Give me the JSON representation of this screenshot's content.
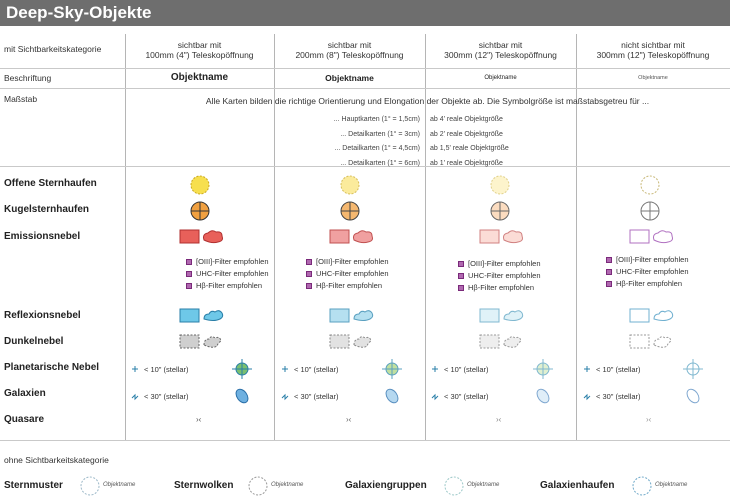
{
  "title": "Deep-Sky-Objekte",
  "header": {
    "row_label": "mit Sichtbarkeitskategorie",
    "columns": [
      {
        "line1": "sichtbar mit",
        "line2": "100mm (4\") Teleskopöffnung"
      },
      {
        "line1": "sichtbar mit",
        "line2": "200mm (8\") Teleskopöffnung"
      },
      {
        "line1": "sichtbar mit",
        "line2": "300mm (12\") Teleskopöffnung"
      },
      {
        "line1": "nicht sichtbar mit",
        "line2": "300mm (12\") Teleskopöffnung"
      }
    ]
  },
  "beschriftung": {
    "label": "Beschriftung",
    "samples": [
      "Objektname",
      "Objektname",
      "Objektname",
      "Objektname"
    ]
  },
  "massstab": {
    "label": "Maßstab",
    "intro": "Alle Karten bilden die richtige Orientierung und Elongation der Objekte ab. Die Symbolgröße ist maßstabsgetreu für ...",
    "rows": [
      {
        "left": "... Hauptkarten (1° = 1,5cm)",
        "right": "ab 4' reale Objektgröße"
      },
      {
        "left": "... Detailkarten (1° = 3cm)",
        "right": "ab 2' reale Objektgröße"
      },
      {
        "left": "... Detailkarten (1° = 4,5cm)",
        "right": "ab 1,5' reale Objektgröße"
      },
      {
        "left": "... Detailkarten (1° = 6cm)",
        "right": "ab 1' reale Objektgröße"
      }
    ]
  },
  "categories": {
    "offene": "Offene Sternhaufen",
    "kugel": "Kugelsternhaufen",
    "emission": "Emissionsnebel",
    "reflexion": "Reflexionsnebel",
    "dunkel": "Dunkelnebel",
    "planetarisch": "Planetarische Nebel",
    "galaxien": "Galaxien",
    "quasare": "Quasare"
  },
  "filters": [
    "[OIII]-Filter empfohlen",
    "UHC-Filter empfohlen",
    "Hβ-Filter empfohlen"
  ],
  "planetary_note": "< 10\" (stellar)",
  "galaxy_note": "< 30\" (stellar)",
  "quasar_symbol": "›‹",
  "ohne": {
    "label": "ohne Sichtbarkeitskategorie",
    "items": [
      {
        "name": "Sternmuster",
        "sample": "Objektname"
      },
      {
        "name": "Sternwolken",
        "sample": "Objektname"
      },
      {
        "name": "Galaxiengruppen",
        "sample": "Objektname"
      },
      {
        "name": "Galaxienhaufen",
        "sample": "Objektname"
      }
    ]
  },
  "colors": {
    "title_bg": "#6e6e6e",
    "open_cluster": "#f7df4e",
    "globular": "#f0a040",
    "emission": "#e8605a",
    "reflection": "#6ec8e8",
    "dark": "#cfcfcf",
    "planetary": "#7ac070",
    "galaxy": "#6eb0e0"
  }
}
